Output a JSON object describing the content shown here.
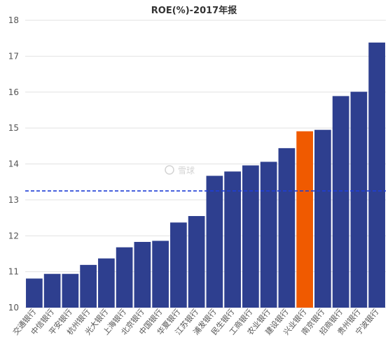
{
  "chart_data": {
    "type": "bar",
    "title": "ROE(%)-2017年报",
    "xlabel": "",
    "ylabel": "",
    "ylim": [
      10,
      18
    ],
    "yticks": [
      10,
      11,
      12,
      13,
      14,
      15,
      16,
      17,
      18
    ],
    "categories": [
      "交通银行",
      "中信银行",
      "平安银行",
      "杭州银行",
      "光大银行",
      "上海银行",
      "北京银行",
      "中国银行",
      "华夏银行",
      "江苏银行",
      "浦发银行",
      "民生银行",
      "工商银行",
      "农业银行",
      "建设银行",
      "兴业银行",
      "南京银行",
      "招商银行",
      "贵州银行",
      "宁波银行"
    ],
    "values": [
      10.81,
      10.94,
      10.94,
      11.19,
      11.37,
      11.68,
      11.83,
      11.86,
      12.37,
      12.55,
      13.67,
      13.79,
      13.96,
      14.06,
      14.44,
      14.91,
      14.95,
      15.89,
      16.01,
      17.38
    ],
    "highlight": "兴业银行",
    "reference_line": 13.25,
    "grid": true,
    "legend": "none",
    "colors": {
      "bar": "#2e3f8f",
      "highlight": "#f05a00",
      "reference": "#1f3fd6",
      "grid": "#e2e2e2"
    }
  },
  "watermark": "雪球"
}
